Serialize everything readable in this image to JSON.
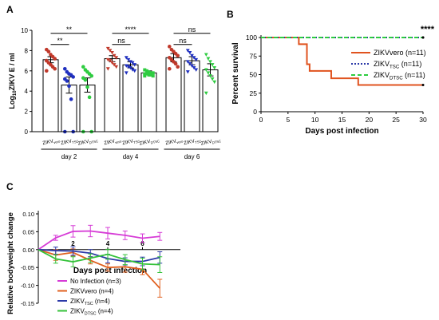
{
  "chart_data": [
    {
      "panel": "A",
      "type": "bar",
      "ylabel": "Log10ZIKV E / ml",
      "ylabel_parts": {
        "pre": "Log",
        "sub": "10",
        "post": "ZIKV E / ml"
      },
      "ylim": [
        0,
        10
      ],
      "yticks": [
        "0",
        "2",
        "4",
        "6",
        "8",
        "10"
      ],
      "groups": [
        {
          "label": "day 2",
          "bars": [
            {
              "label": "ZIKVvero",
              "main": "ZIKV",
              "sub": "vero",
              "value": 7.1,
              "err": 0.3,
              "color": "#c0392b",
              "points": [
                8.1,
                7.9,
                7.6,
                7.4,
                7.2,
                7.0,
                6.8,
                6.6,
                6.4,
                6.2,
                6.0
              ]
            },
            {
              "label": "ZIKVTSC",
              "main": "ZIKV",
              "sub": "TSC",
              "value": 4.6,
              "err": 0.8,
              "color": "#1f2fbf",
              "points": [
                6.2,
                5.9,
                5.7,
                5.6,
                5.4,
                5.2,
                5.0,
                4.5,
                3.2,
                0.0,
                0.0
              ]
            },
            {
              "label": "ZIKVDTSC",
              "main": "ZIKV",
              "sub": "DTSC",
              "value": 4.6,
              "err": 0.7,
              "color": "#2ecc40",
              "points": [
                6.4,
                6.1,
                5.9,
                5.7,
                5.5,
                5.3,
                5.1,
                4.4,
                3.4,
                0.0,
                0.0
              ]
            }
          ]
        },
        {
          "label": "day 4",
          "bars": [
            {
              "label": "ZIKVvero",
              "main": "ZIKV",
              "sub": "vero",
              "value": 7.2,
              "err": 0.3,
              "color": "#c0392b",
              "points": [
                8.2,
                8.0,
                7.8,
                7.5,
                7.3,
                7.1,
                7.0,
                6.8,
                6.6,
                6.4,
                6.2
              ]
            },
            {
              "label": "ZIKVTSC",
              "main": "ZIKV",
              "sub": "TSC",
              "value": 6.6,
              "err": 0.3,
              "color": "#1f2fbf",
              "points": [
                7.3,
                7.1,
                6.9,
                6.8,
                6.6,
                6.5,
                6.4,
                6.3,
                6.1,
                6.0,
                5.8
              ]
            },
            {
              "label": "ZIKVDTSC",
              "main": "ZIKV",
              "sub": "DTSC",
              "value": 5.8,
              "err": 0.2,
              "color": "#2ecc40",
              "points": [
                6.1,
                6.0,
                5.9,
                5.8,
                5.8,
                5.7,
                5.7,
                5.6,
                5.6,
                5.5,
                5.5
              ]
            }
          ]
        },
        {
          "label": "day 6",
          "bars": [
            {
              "label": "ZIKVvero",
              "main": "ZIKV",
              "sub": "vero",
              "value": 7.3,
              "err": 0.4,
              "color": "#c0392b",
              "points": [
                8.4,
                8.1,
                7.9,
                7.7,
                7.5,
                7.3,
                7.1,
                6.9,
                6.7,
                6.4,
                6.2
              ]
            },
            {
              "label": "ZIKVTSC",
              "main": "ZIKV",
              "sub": "TSC",
              "value": 7.0,
              "err": 0.4,
              "color": "#1f2fbf",
              "points": [
                8.0,
                7.8,
                7.5,
                7.3,
                7.1,
                6.9,
                6.7,
                6.5,
                6.3,
                6.1,
                5.9
              ]
            },
            {
              "label": "ZIKVDTSC",
              "main": "ZIKV",
              "sub": "DTSC",
              "value": 6.1,
              "err": 0.6,
              "color": "#2ecc40",
              "points": [
                7.6,
                7.2,
                6.9,
                6.6,
                6.3,
                6.1,
                5.8,
                5.5,
                5.2,
                4.9,
                3.8
              ]
            }
          ]
        }
      ],
      "significance": [
        {
          "text": "**",
          "from": [
            0,
            0
          ],
          "to": [
            0,
            2
          ],
          "y": 9.7
        },
        {
          "text": "**",
          "from": [
            0,
            0
          ],
          "to": [
            0,
            1
          ],
          "y": 8.6
        },
        {
          "text": "****",
          "from": [
            1,
            0
          ],
          "to": [
            1,
            2
          ],
          "y": 9.7
        },
        {
          "text": "ns",
          "from": [
            1,
            0
          ],
          "to": [
            1,
            1
          ],
          "y": 8.6
        },
        {
          "text": "ns",
          "from": [
            2,
            0
          ],
          "to": [
            2,
            2
          ],
          "y": 9.7
        },
        {
          "text": "ns",
          "from": [
            2,
            0
          ],
          "to": [
            2,
            1
          ],
          "y": 8.6
        }
      ]
    },
    {
      "panel": "B",
      "type": "line",
      "xlabel": "Days post infection",
      "ylabel": "Percent survival",
      "xlim": [
        0,
        30
      ],
      "ylim": [
        0,
        100
      ],
      "xticks": [
        "0",
        "5",
        "10",
        "15",
        "20",
        "25",
        "30"
      ],
      "yticks": [
        "0",
        "25",
        "50",
        "75",
        "100"
      ],
      "annotation": "****",
      "series": [
        {
          "name": "ZIKVvero (n=11)",
          "main": "ZIKVvero",
          "sub": "",
          "tail": " (n=11)",
          "color": "#e0531f",
          "dash": "",
          "steps": [
            [
              0,
              100
            ],
            [
              7,
              100
            ],
            [
              7,
              91
            ],
            [
              8.5,
              91
            ],
            [
              8.5,
              64
            ],
            [
              9,
              64
            ],
            [
              9,
              55
            ],
            [
              10,
              55
            ],
            [
              10,
              55
            ],
            [
              13,
              55
            ],
            [
              13,
              45
            ],
            [
              15,
              45
            ],
            [
              15,
              45
            ],
            [
              18,
              45
            ],
            [
              18,
              36
            ],
            [
              30,
              36
            ]
          ]
        },
        {
          "name": "ZIKVTSC (n=11)",
          "main": "ZIKV",
          "sub": "TSC",
          "tail": " (n=11)",
          "color": "#2c3aa8",
          "dash": "2,2",
          "steps": [
            [
              0,
              100
            ],
            [
              30,
              100
            ]
          ]
        },
        {
          "name": "ZIKVDTSC (n=11)",
          "main": "ZIKV",
          "sub": "DTSC",
          "tail": " (n=11)",
          "color": "#2ecc40",
          "dash": "5,3",
          "steps": [
            [
              0,
              100
            ],
            [
              30,
              100
            ]
          ]
        }
      ]
    },
    {
      "panel": "C",
      "type": "line",
      "xlabel": "Days post infection",
      "ylabel": "Relative bodyweight change",
      "xlim": [
        0,
        8
      ],
      "ylim": [
        -0.15,
        0.1
      ],
      "xticks": [
        "2",
        "4",
        "6"
      ],
      "yticks": [
        "0.10",
        "0.05",
        "0.00",
        "-0.05",
        "-0.10",
        "-0.15"
      ],
      "x": [
        0,
        1,
        2,
        3,
        4,
        5,
        6,
        7
      ],
      "series": [
        {
          "name": "No Infection (n=3)",
          "main": "No Infection (n=3)",
          "sub": "",
          "tail": "",
          "color": "#d63bd6",
          "values": [
            0.0,
            0.033,
            0.051,
            0.052,
            0.046,
            0.04,
            0.032,
            0.037
          ],
          "err": [
            0,
            0.007,
            0.016,
            0.016,
            0.016,
            0.012,
            0.012,
            0.011
          ]
        },
        {
          "name": "ZIKVvero (n=4)",
          "main": "ZIKVvero (n=4)",
          "sub": "",
          "tail": "",
          "color": "#e0601f",
          "values": [
            0.0,
            -0.015,
            -0.008,
            -0.03,
            -0.05,
            -0.048,
            -0.055,
            -0.108
          ],
          "err": [
            0,
            0.015,
            0.01,
            0.01,
            0.01,
            0.015,
            0.015,
            0.025
          ]
        },
        {
          "name": "ZIKVTSC (n=4)",
          "main": "ZIKV",
          "sub": "TSC",
          "tail": " (n=4)",
          "color": "#2c3aa8",
          "values": [
            0.0,
            -0.003,
            -0.004,
            -0.01,
            -0.025,
            -0.033,
            -0.033,
            -0.022
          ],
          "err": [
            0,
            0.01,
            0.012,
            0.01,
            0.012,
            0.01,
            0.012,
            0.016
          ]
        },
        {
          "name": "ZIKVDTSC (n=4)",
          "main": "ZIKV",
          "sub": "DTSC",
          "tail": " (n=4)",
          "color": "#34c23a",
          "values": [
            0.0,
            -0.026,
            -0.034,
            -0.024,
            -0.013,
            -0.028,
            -0.04,
            -0.042
          ],
          "err": [
            0,
            0.012,
            0.014,
            0.012,
            0.014,
            0.014,
            0.016,
            0.022
          ]
        }
      ]
    }
  ]
}
